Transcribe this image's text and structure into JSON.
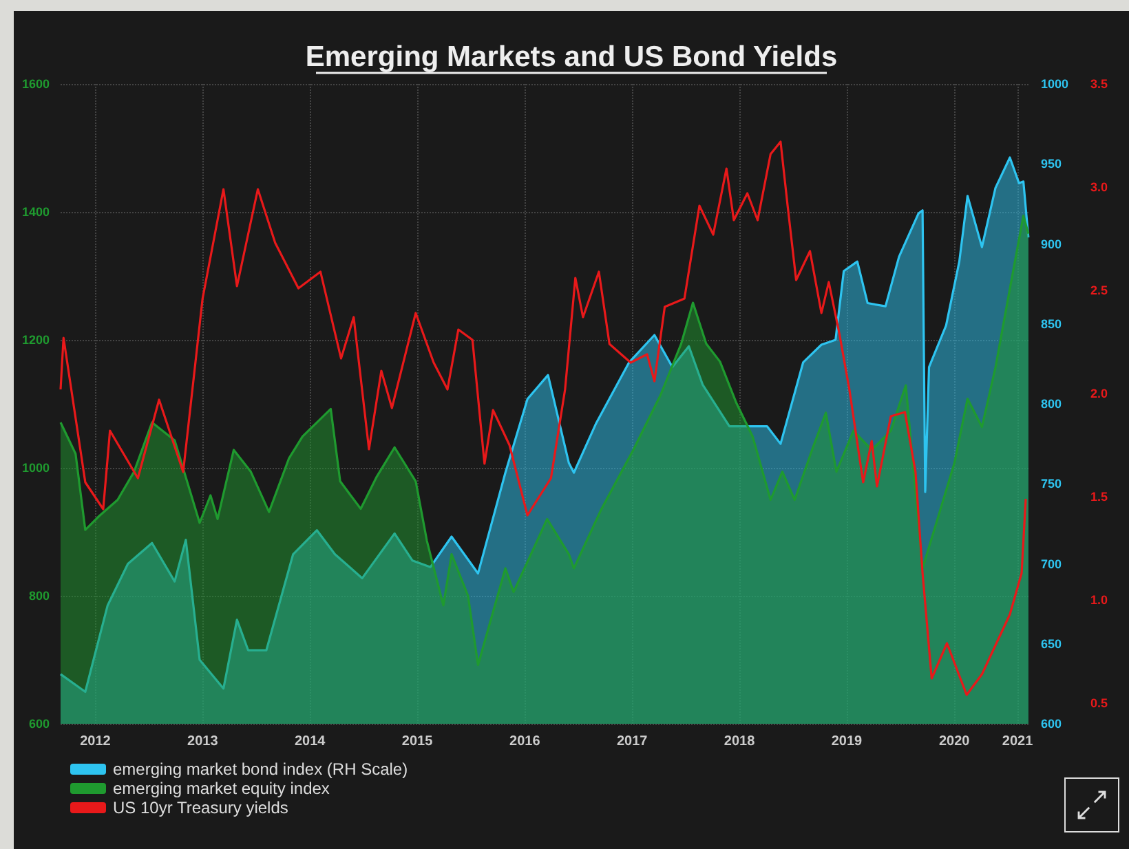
{
  "chart_data": {
    "type": "line",
    "title": "Emerging Markets and US Bond Yields",
    "xlim": [
      "2012-03-05",
      "2021-03-15"
    ],
    "xticks": [
      {
        "value": "2012-07-01",
        "label": "2012"
      },
      {
        "value": "2013-07-01",
        "label": "2013"
      },
      {
        "value": "2014-07-01",
        "label": "2014"
      },
      {
        "value": "2015-07-01",
        "label": "2015"
      },
      {
        "value": "2016-07-01",
        "label": "2016"
      },
      {
        "value": "2017-07-01",
        "label": "2017"
      },
      {
        "value": "2018-07-01",
        "label": "2018"
      },
      {
        "value": "2019-07-01",
        "label": "2019"
      },
      {
        "value": "2020-07-01",
        "label": "2020"
      },
      {
        "value": "2021-02-01",
        "label": "2021"
      }
    ],
    "ylim": [
      600,
      1600
    ],
    "yticks": [
      600,
      800,
      1000,
      1200,
      1400,
      1600
    ],
    "y2lim": [
      600,
      1000
    ],
    "y2ticks": [
      600,
      650,
      700,
      750,
      800,
      850,
      900,
      950,
      1000
    ],
    "y3lim": [
      0.4,
      3.5
    ],
    "y3ticks": [
      0.5,
      {
        "value": 1,
        "label": "1.0"
      },
      1.5,
      {
        "value": 2,
        "label": "2.0"
      },
      2.5,
      {
        "value": 3,
        "label": "3.0"
      },
      3.5
    ],
    "grid": true,
    "legend": "bottom",
    "marker": "none",
    "line_style": "solid",
    "series": [
      {
        "name": "emerging market bond index (RH Scale)",
        "type": "area",
        "axis": "y2",
        "color": "#2ec4f0",
        "x": [
          "2012-03-05",
          "2012-05-28",
          "2012-08-12",
          "2012-10-20",
          "2013-01-10",
          "2013-03-28",
          "2013-05-05",
          "2013-06-21",
          "2013-09-10",
          "2013-10-26",
          "2013-12-03",
          "2014-02-03",
          "2014-05-05",
          "2014-07-25",
          "2014-09-24",
          "2014-12-26",
          "2015-04-15",
          "2015-06-15",
          "2015-08-15",
          "2015-10-26",
          "2016-01-24",
          "2016-04-26",
          "2016-07-10",
          "2016-09-18",
          "2016-11-28",
          "2016-12-15",
          "2017-03-01",
          "2017-06-21",
          "2017-09-15",
          "2017-11-15",
          "2018-01-10",
          "2018-02-26",
          "2018-05-28",
          "2018-10-03",
          "2018-11-18",
          "2019-02-03",
          "2019-04-06",
          "2019-05-24",
          "2019-06-21",
          "2019-08-06",
          "2019-09-10",
          "2019-11-10",
          "2019-12-26",
          "2020-03-01",
          "2020-03-15",
          "2020-03-24",
          "2020-04-06",
          "2020-06-03",
          "2020-07-18",
          "2020-08-15",
          "2020-10-03",
          "2020-11-18",
          "2021-01-06",
          "2021-02-06",
          "2021-02-21",
          "2021-03-10"
        ],
        "values": [
          631,
          620,
          674,
          700,
          713,
          689,
          715,
          640,
          622,
          665,
          646,
          646,
          706,
          721,
          706,
          691,
          719,
          702,
          698,
          717,
          694,
          757,
          803,
          818,
          763,
          757,
          788,
          826,
          843,
          823,
          836,
          812,
          786,
          786,
          775,
          826,
          837,
          840,
          883,
          889,
          863,
          861,
          892,
          919,
          921,
          745,
          823,
          849,
          889,
          930,
          898,
          935,
          954,
          938,
          939,
          904
        ]
      },
      {
        "name": "emerging market equity index",
        "type": "area",
        "axis": "y",
        "color": "#1f9a2f",
        "x": [
          "2012-03-05",
          "2012-04-25",
          "2012-05-28",
          "2012-07-15",
          "2012-09-15",
          "2012-11-10",
          "2013-01-10",
          "2013-03-28",
          "2013-06-21",
          "2013-07-28",
          "2013-08-21",
          "2013-10-15",
          "2013-12-12",
          "2014-02-12",
          "2014-04-21",
          "2014-06-06",
          "2014-09-10",
          "2014-10-12",
          "2014-12-21",
          "2015-02-12",
          "2015-04-15",
          "2015-06-26",
          "2015-08-03",
          "2015-09-28",
          "2015-10-26",
          "2015-12-21",
          "2016-01-24",
          "2016-04-26",
          "2016-05-24",
          "2016-09-15",
          "2016-11-28",
          "2016-12-15",
          "2017-03-18",
          "2017-07-05",
          "2017-10-06",
          "2017-12-15",
          "2018-01-24",
          "2018-03-10",
          "2018-04-26",
          "2018-06-21",
          "2018-08-15",
          "2018-10-15",
          "2018-11-24",
          "2019-01-05",
          "2019-03-05",
          "2019-04-21",
          "2019-05-27",
          "2019-07-24",
          "2019-09-24",
          "2019-11-28",
          "2020-01-18",
          "2020-03-15",
          "2020-04-27",
          "2020-07-01",
          "2020-08-15",
          "2020-10-03",
          "2020-11-18",
          "2021-01-06",
          "2021-02-21",
          "2021-03-10"
        ],
        "values": [
          1071,
          1022,
          903,
          925,
          950,
          994,
          1071,
          1043,
          914,
          957,
          920,
          1028,
          994,
          931,
          1015,
          1049,
          1092,
          979,
          936,
          985,
          1032,
          979,
          886,
          785,
          865,
          800,
          692,
          843,
          806,
          920,
          865,
          843,
          935,
          1028,
          1114,
          1194,
          1258,
          1194,
          1166,
          1101,
          1049,
          950,
          994,
          950,
          1028,
          1086,
          994,
          1058,
          1028,
          1058,
          1129,
          843,
          908,
          1007,
          1108,
          1064,
          1157,
          1280,
          1394,
          1366
        ]
      },
      {
        "name": "US 10yr Treasury yields",
        "axis": "y3",
        "color": "#e8191a",
        "x": [
          "2012-03-05",
          "2012-03-15",
          "2012-05-28",
          "2012-07-28",
          "2012-08-20",
          "2012-11-23",
          "2013-02-03",
          "2013-04-26",
          "2013-07-01",
          "2013-09-10",
          "2013-10-26",
          "2014-01-05",
          "2014-03-05",
          "2014-05-23",
          "2014-08-06",
          "2014-10-15",
          "2014-11-27",
          "2015-01-18",
          "2015-03-01",
          "2015-04-06",
          "2015-06-26",
          "2015-08-26",
          "2015-10-12",
          "2015-11-18",
          "2016-01-05",
          "2016-02-15",
          "2016-03-15",
          "2016-05-10",
          "2016-07-10",
          "2016-09-28",
          "2016-11-15",
          "2016-12-20",
          "2017-01-15",
          "2017-03-10",
          "2017-04-15",
          "2017-06-26",
          "2017-08-21",
          "2017-09-15",
          "2017-10-20",
          "2017-12-26",
          "2018-02-15",
          "2018-04-03",
          "2018-05-18",
          "2018-06-12",
          "2018-07-28",
          "2018-09-01",
          "2018-10-15",
          "2018-11-18",
          "2018-12-12",
          "2019-01-10",
          "2019-02-26",
          "2019-04-06",
          "2019-05-01",
          "2019-06-06",
          "2019-07-10",
          "2019-08-26",
          "2019-09-24",
          "2019-10-12",
          "2019-11-28",
          "2020-01-15",
          "2020-02-20",
          "2020-03-15",
          "2020-04-15",
          "2020-06-06",
          "2020-08-12",
          "2020-10-03",
          "2021-01-06",
          "2021-02-15",
          "2021-03-01"
        ],
        "values": [
          2.02,
          2.27,
          1.57,
          1.44,
          1.82,
          1.59,
          1.97,
          1.62,
          2.46,
          2.99,
          2.52,
          2.99,
          2.73,
          2.51,
          2.59,
          2.17,
          2.37,
          1.73,
          2.11,
          1.93,
          2.39,
          2.15,
          2.02,
          2.31,
          2.26,
          1.66,
          1.92,
          1.75,
          1.41,
          1.59,
          2.02,
          2.56,
          2.37,
          2.59,
          2.24,
          2.15,
          2.19,
          2.06,
          2.42,
          2.46,
          2.91,
          2.77,
          3.09,
          2.84,
          2.97,
          2.84,
          3.16,
          3.22,
          2.91,
          2.55,
          2.69,
          2.39,
          2.54,
          2.29,
          2.02,
          1.57,
          1.77,
          1.55,
          1.89,
          1.91,
          1.62,
          1.13,
          0.62,
          0.79,
          0.54,
          0.64,
          0.93,
          1.13,
          1.49
        ]
      }
    ]
  }
}
